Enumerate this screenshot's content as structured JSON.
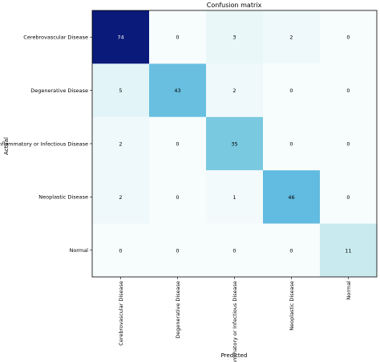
{
  "chart_data": {
    "type": "heatmap",
    "title": "Confusion matrix",
    "xlabel": "Predicted",
    "ylabel": "Actual",
    "categories": [
      "Cerebrovascular Disease",
      "Degenerative Disease",
      "Inflammatory or Infectious Disease",
      "Neoplastic Disease",
      "Normal"
    ],
    "matrix": [
      [
        74,
        0,
        3,
        2,
        0
      ],
      [
        5,
        43,
        2,
        0,
        0
      ],
      [
        2,
        0,
        35,
        0,
        0
      ],
      [
        2,
        0,
        1,
        46,
        0
      ],
      [
        0,
        0,
        0,
        0,
        11
      ]
    ],
    "colormap": [
      "#f7fcfd",
      "#8fd6e0",
      "#5bb7e0",
      "#0a1a7a"
    ],
    "vmax": 74
  }
}
